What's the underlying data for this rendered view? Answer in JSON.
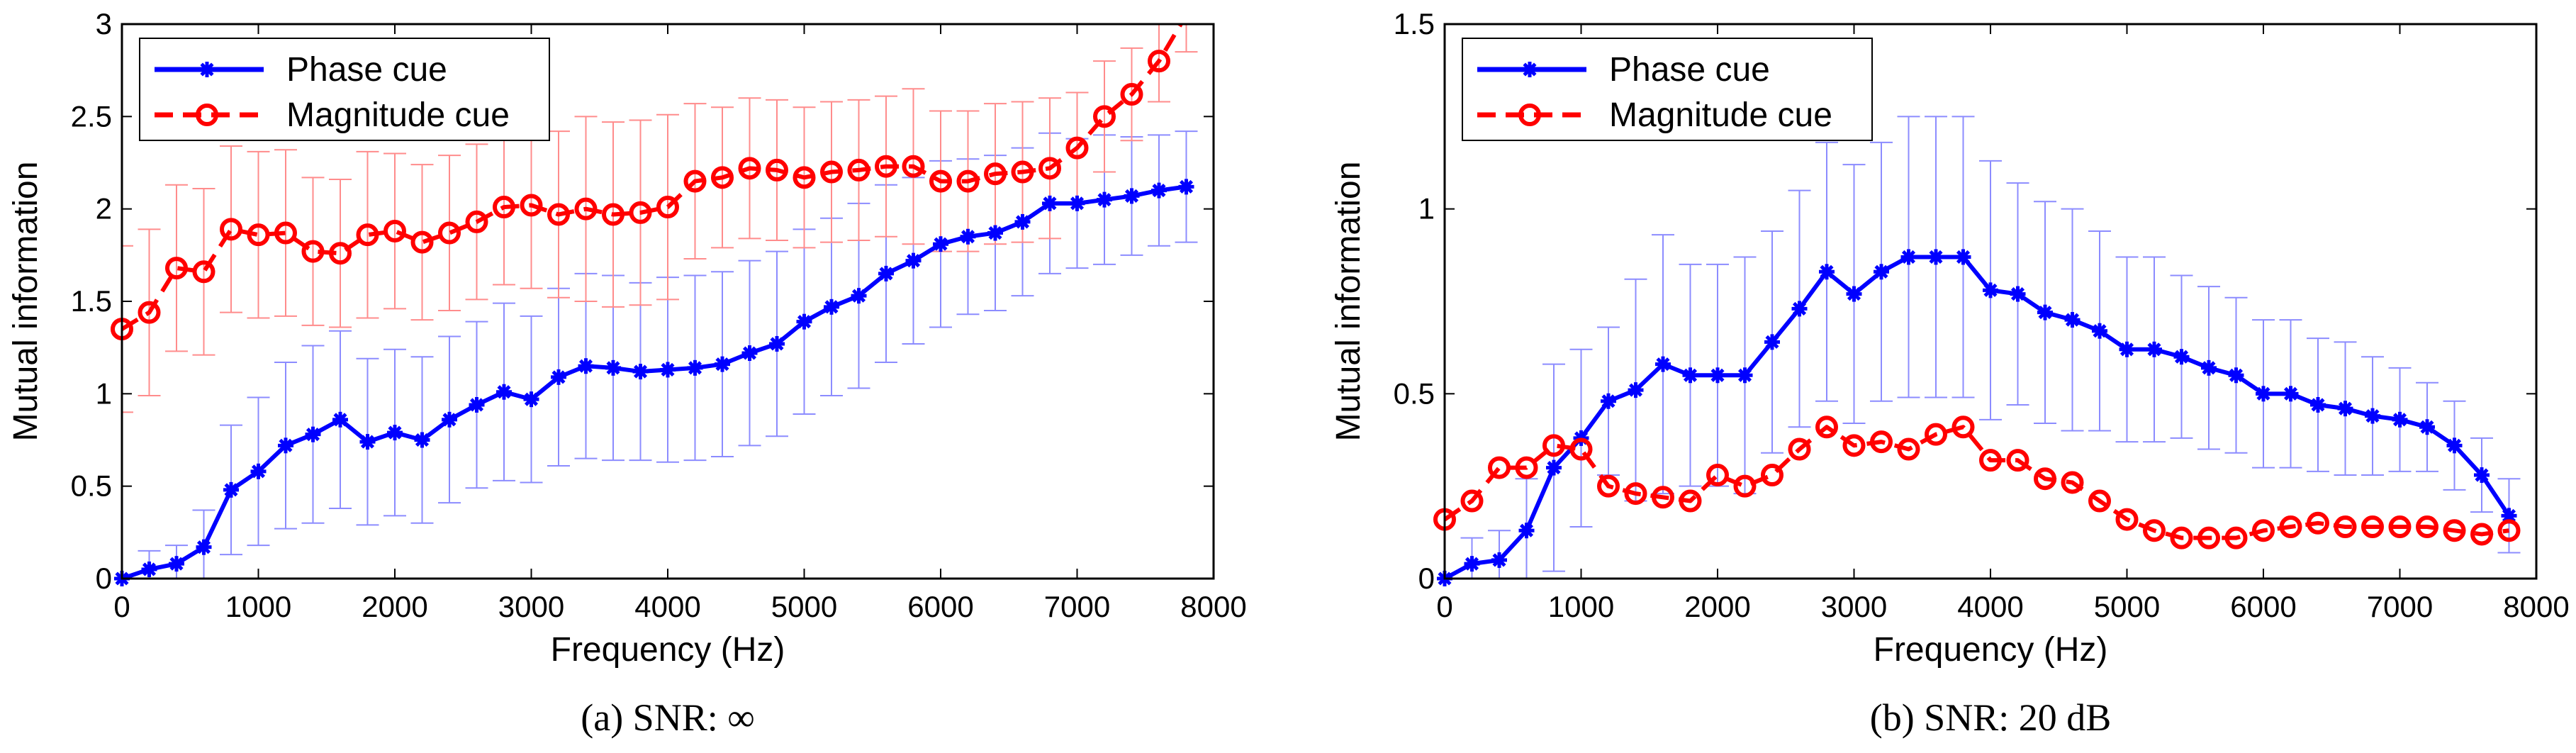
{
  "figure": {
    "panels": [
      {
        "caption": "(a) SNR: ∞",
        "legend_location": "top-left"
      },
      {
        "caption": "(b) SNR: 20 dB",
        "legend_location": "top-left"
      }
    ]
  },
  "chart_data": [
    {
      "type": "line",
      "title": "",
      "xlabel": "Frequency (Hz)",
      "ylabel": "Mutual information",
      "xlim": [
        0,
        8000
      ],
      "ylim": [
        0,
        3
      ],
      "xticks": [
        0,
        1000,
        2000,
        3000,
        4000,
        5000,
        6000,
        7000,
        8000
      ],
      "yticks": [
        0,
        0.5,
        1,
        1.5,
        2,
        2.5,
        3
      ],
      "ytick_labels": [
        "0",
        "0.5",
        "1",
        "1.5",
        "2",
        "2.5",
        "3"
      ],
      "xtick_labels": [
        "0",
        "1000",
        "2000",
        "3000",
        "4000",
        "5000",
        "6000",
        "7000",
        "8000"
      ],
      "x": [
        0,
        200,
        400,
        600,
        800,
        1000,
        1200,
        1400,
        1600,
        1800,
        2000,
        2200,
        2400,
        2600,
        2800,
        3000,
        3200,
        3400,
        3600,
        3800,
        4000,
        4200,
        4400,
        4600,
        4800,
        5000,
        5200,
        5400,
        5600,
        5800,
        6000,
        6200,
        6400,
        6600,
        6800,
        7000,
        7200,
        7400,
        7600,
        7800
      ],
      "series": [
        {
          "name": "Phase cue",
          "color": "#0000ff",
          "err_color": "#8c8cff",
          "marker": "asterisk",
          "linestyle": "solid",
          "values": [
            0.0,
            0.05,
            0.08,
            0.17,
            0.48,
            0.58,
            0.72,
            0.78,
            0.86,
            0.74,
            0.79,
            0.75,
            0.86,
            0.94,
            1.01,
            0.97,
            1.09,
            1.15,
            1.14,
            1.12,
            1.13,
            1.14,
            1.16,
            1.22,
            1.27,
            1.39,
            1.47,
            1.53,
            1.65,
            1.72,
            1.81,
            1.85,
            1.87,
            1.93,
            2.03,
            2.03,
            2.05,
            2.07,
            2.1,
            2.12
          ],
          "err": [
            0.0,
            0.1,
            0.1,
            0.2,
            0.35,
            0.4,
            0.45,
            0.48,
            0.48,
            0.45,
            0.45,
            0.45,
            0.45,
            0.45,
            0.48,
            0.45,
            0.48,
            0.5,
            0.5,
            0.48,
            0.5,
            0.5,
            0.5,
            0.5,
            0.5,
            0.5,
            0.48,
            0.5,
            0.48,
            0.45,
            0.45,
            0.42,
            0.42,
            0.4,
            0.38,
            0.35,
            0.35,
            0.32,
            0.3,
            0.3
          ]
        },
        {
          "name": "Magnitude cue",
          "color": "#ff0000",
          "err_color": "#ff8c8c",
          "marker": "circle",
          "linestyle": "dashed",
          "values": [
            1.35,
            1.44,
            1.68,
            1.66,
            1.89,
            1.86,
            1.87,
            1.77,
            1.76,
            1.86,
            1.88,
            1.82,
            1.87,
            1.93,
            2.01,
            2.02,
            1.97,
            2.0,
            1.97,
            1.98,
            2.01,
            2.15,
            2.17,
            2.22,
            2.21,
            2.17,
            2.2,
            2.21,
            2.23,
            2.23,
            2.15,
            2.15,
            2.19,
            2.2,
            2.22,
            2.33,
            2.5,
            2.62,
            2.8,
            3.05
          ],
          "err": [
            0.45,
            0.45,
            0.45,
            0.45,
            0.45,
            0.45,
            0.45,
            0.4,
            0.4,
            0.45,
            0.42,
            0.42,
            0.42,
            0.42,
            0.42,
            0.45,
            0.45,
            0.5,
            0.5,
            0.5,
            0.5,
            0.42,
            0.38,
            0.38,
            0.38,
            0.38,
            0.38,
            0.38,
            0.38,
            0.42,
            0.38,
            0.38,
            0.38,
            0.38,
            0.38,
            0.3,
            0.3,
            0.25,
            0.22,
            0.2
          ]
        }
      ]
    },
    {
      "type": "line",
      "title": "",
      "xlabel": "Frequency (Hz)",
      "ylabel": "Mutual information",
      "xlim": [
        0,
        8000
      ],
      "ylim": [
        0,
        1.5
      ],
      "xticks": [
        0,
        1000,
        2000,
        3000,
        4000,
        5000,
        6000,
        7000,
        8000
      ],
      "yticks": [
        0,
        0.5,
        1,
        1.5
      ],
      "ytick_labels": [
        "0",
        "0.5",
        "1",
        "1.5"
      ],
      "xtick_labels": [
        "0",
        "1000",
        "2000",
        "3000",
        "4000",
        "5000",
        "6000",
        "7000",
        "8000"
      ],
      "x": [
        0,
        200,
        400,
        600,
        800,
        1000,
        1200,
        1400,
        1600,
        1800,
        2000,
        2200,
        2400,
        2600,
        2800,
        3000,
        3200,
        3400,
        3600,
        3800,
        4000,
        4200,
        4400,
        4600,
        4800,
        5000,
        5200,
        5400,
        5600,
        5800,
        6000,
        6200,
        6400,
        6600,
        6800,
        7000,
        7200,
        7400,
        7600,
        7800
      ],
      "series": [
        {
          "name": "Phase cue",
          "color": "#0000ff",
          "err_color": "#8c8cff",
          "marker": "asterisk",
          "linestyle": "solid",
          "values": [
            0.0,
            0.04,
            0.05,
            0.13,
            0.3,
            0.38,
            0.48,
            0.51,
            0.58,
            0.55,
            0.55,
            0.55,
            0.64,
            0.73,
            0.83,
            0.77,
            0.83,
            0.87,
            0.87,
            0.87,
            0.78,
            0.77,
            0.72,
            0.7,
            0.67,
            0.62,
            0.62,
            0.6,
            0.57,
            0.55,
            0.5,
            0.5,
            0.47,
            0.46,
            0.44,
            0.43,
            0.41,
            0.36,
            0.28,
            0.17
          ],
          "err": [
            0.0,
            0.07,
            0.08,
            0.14,
            0.28,
            0.24,
            0.2,
            0.3,
            0.35,
            0.3,
            0.3,
            0.32,
            0.3,
            0.32,
            0.35,
            0.35,
            0.35,
            0.38,
            0.38,
            0.38,
            0.35,
            0.3,
            0.3,
            0.3,
            0.27,
            0.25,
            0.25,
            0.22,
            0.22,
            0.21,
            0.2,
            0.2,
            0.18,
            0.18,
            0.16,
            0.14,
            0.12,
            0.12,
            0.1,
            0.1
          ]
        },
        {
          "name": "Magnitude cue",
          "color": "#ff0000",
          "err_color": "#ff8c8c",
          "marker": "circle",
          "linestyle": "dashed",
          "values": [
            0.16,
            0.21,
            0.3,
            0.3,
            0.36,
            0.35,
            0.25,
            0.23,
            0.22,
            0.21,
            0.28,
            0.25,
            0.28,
            0.35,
            0.41,
            0.36,
            0.37,
            0.35,
            0.39,
            0.41,
            0.32,
            0.32,
            0.27,
            0.26,
            0.21,
            0.16,
            0.13,
            0.11,
            0.11,
            0.11,
            0.13,
            0.14,
            0.15,
            0.14,
            0.14,
            0.14,
            0.14,
            0.13,
            0.12,
            0.13
          ]
        }
      ]
    }
  ]
}
